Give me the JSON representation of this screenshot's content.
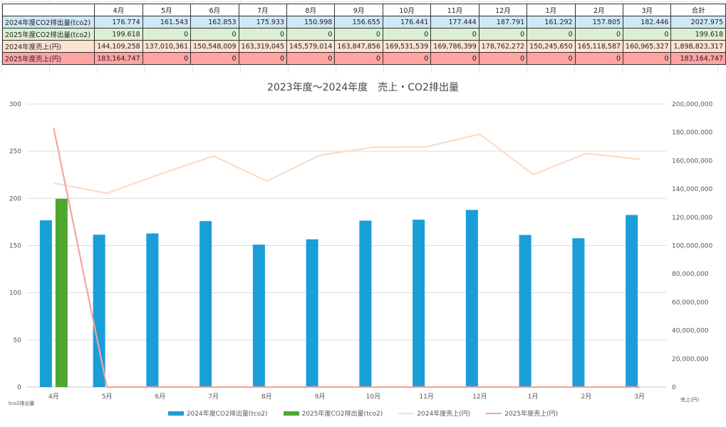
{
  "table": {
    "months": [
      "4月",
      "5月",
      "6月",
      "7月",
      "8月",
      "9月",
      "10月",
      "11月",
      "12月",
      "1月",
      "2月",
      "3月"
    ],
    "total_label": "合計",
    "rows": [
      {
        "label": "2024年度CO2排出量(tco2)",
        "cls": "r-co2-2024",
        "values": [
          "176.774",
          "161.543",
          "162.853",
          "175.933",
          "150.998",
          "156.655",
          "176.441",
          "177.444",
          "187.791",
          "161.292",
          "157.805",
          "182.446"
        ],
        "total": "2027.975"
      },
      {
        "label": "2025年度CO2排出量(tco2)",
        "cls": "r-co2-2025",
        "values": [
          "199.618",
          "0",
          "0",
          "0",
          "0",
          "0",
          "0",
          "0",
          "0",
          "0",
          "0",
          "0"
        ],
        "total": "199.618"
      },
      {
        "label": "2024年度売上(円)",
        "cls": "r-sales-2024",
        "values": [
          "144,109,258",
          "137,010,361",
          "150,548,009",
          "163,319,045",
          "145,579,014",
          "163,847,856",
          "169,531,539",
          "169,786,399",
          "178,762,272",
          "150,245,650",
          "165,118,587",
          "160,965,327"
        ],
        "total": "1,898,823,317"
      },
      {
        "label": "2025年度売上(円)",
        "cls": "r-sales-2025",
        "values": [
          "183,164,747",
          "0",
          "0",
          "0",
          "0",
          "0",
          "0",
          "0",
          "0",
          "0",
          "0",
          "0"
        ],
        "total": "183,164,747"
      }
    ]
  },
  "chart_data": {
    "type": "bar+line",
    "title": "2023年度～2024年度　売上・CO2排出量",
    "categories": [
      "4月",
      "5月",
      "6月",
      "7月",
      "8月",
      "9月",
      "10月",
      "11月",
      "12月",
      "1月",
      "2月",
      "3月"
    ],
    "y_left": {
      "label": "tco2排出量",
      "min": 0,
      "max": 300,
      "ticks": [
        0,
        50,
        100,
        150,
        200,
        250,
        300
      ]
    },
    "y_right": {
      "label": "売上(円)",
      "min": 0,
      "max": 200000000,
      "ticks": [
        0,
        20000000,
        40000000,
        60000000,
        80000000,
        100000000,
        120000000,
        140000000,
        160000000,
        180000000,
        200000000
      ],
      "tick_labels": [
        "0",
        "20,000,000",
        "40,000,000",
        "60,000,000",
        "80,000,000",
        "100,000,000",
        "120,000,000",
        "140,000,000",
        "160,000,000",
        "180,000,000",
        "200,000,000"
      ]
    },
    "grid": true,
    "legend_position": "bottom",
    "series": [
      {
        "name": "2024年度CO2排出量(tco2)",
        "kind": "bar",
        "axis": "left",
        "color": "#1a9ed8",
        "values": [
          176.774,
          161.543,
          162.853,
          175.933,
          150.998,
          156.655,
          176.441,
          177.444,
          187.791,
          161.292,
          157.805,
          182.446
        ]
      },
      {
        "name": "2025年度CO2排出量(tco2)",
        "kind": "bar",
        "axis": "left",
        "color": "#4ea72e",
        "values": [
          199.618,
          0,
          0,
          0,
          0,
          0,
          0,
          0,
          0,
          0,
          0,
          0
        ]
      },
      {
        "name": "2024年度売上(円)",
        "kind": "line",
        "axis": "right",
        "color": "#fbdcc9",
        "values": [
          144109258,
          137010361,
          150548009,
          163319045,
          145579014,
          163847856,
          169531539,
          169786399,
          178762272,
          150245650,
          165118587,
          160965327
        ]
      },
      {
        "name": "2025年度売上(円)",
        "kind": "line",
        "axis": "right",
        "color": "#f4a3a3",
        "values": [
          183164747,
          0,
          0,
          0,
          0,
          0,
          0,
          0,
          0,
          0,
          0,
          0
        ]
      }
    ]
  }
}
